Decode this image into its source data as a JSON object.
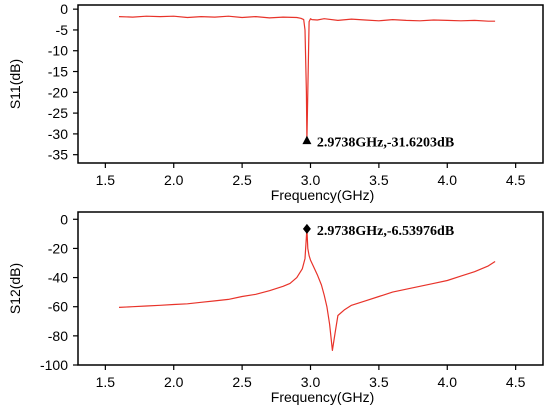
{
  "chart_data": [
    {
      "type": "line",
      "xlabel": "Frequency(GHz)",
      "ylabel": "S11(dB)",
      "xlim": [
        1.3,
        4.7
      ],
      "ylim": [
        -37,
        1
      ],
      "xticks": [
        1.5,
        2.0,
        2.5,
        3.0,
        3.5,
        4.0,
        4.5
      ],
      "yticks": [
        0,
        -5,
        -10,
        -15,
        -20,
        -25,
        -30,
        -35
      ],
      "line_color": "#e8332a",
      "grid": false,
      "series": [
        {
          "x": [
            1.6,
            1.7,
            1.8,
            1.9,
            2.0,
            2.1,
            2.2,
            2.3,
            2.4,
            2.5,
            2.6,
            2.7,
            2.8,
            2.9,
            2.93,
            2.95,
            2.96,
            2.97,
            2.9738,
            2.98,
            2.99,
            3.0,
            3.01,
            3.05,
            3.1,
            3.2,
            3.3,
            3.4,
            3.5,
            3.6,
            3.7,
            3.8,
            3.9,
            4.0,
            4.1,
            4.2,
            4.3,
            4.35
          ],
          "y": [
            -1.8,
            -1.9,
            -1.7,
            -1.8,
            -1.7,
            -2.0,
            -1.8,
            -1.9,
            -1.7,
            -2.0,
            -1.8,
            -2.1,
            -1.9,
            -2.0,
            -2.2,
            -2.5,
            -5.0,
            -20.0,
            -31.6203,
            -20.0,
            -3.0,
            -2.3,
            -2.5,
            -2.6,
            -2.3,
            -2.7,
            -2.4,
            -2.6,
            -2.8,
            -2.5,
            -2.7,
            -2.8,
            -2.6,
            -2.7,
            -2.8,
            -2.7,
            -2.9,
            -2.9
          ]
        }
      ],
      "marker": {
        "x": 2.9738,
        "y": -31.6203,
        "shape": "triangle"
      },
      "annotation": "2.9738GHz,-31.6203dB"
    },
    {
      "type": "line",
      "xlabel": "Frequency(GHz)",
      "ylabel": "S12(dB)",
      "xlim": [
        1.3,
        4.7
      ],
      "ylim": [
        -100,
        5
      ],
      "xticks": [
        1.5,
        2.0,
        2.5,
        3.0,
        3.5,
        4.0,
        4.5
      ],
      "yticks": [
        0,
        -20,
        -40,
        -60,
        -80,
        -100
      ],
      "line_color": "#e8332a",
      "grid": false,
      "series": [
        {
          "x": [
            1.6,
            1.7,
            1.8,
            1.9,
            2.0,
            2.1,
            2.2,
            2.3,
            2.4,
            2.5,
            2.6,
            2.7,
            2.8,
            2.85,
            2.9,
            2.94,
            2.96,
            2.9738,
            2.98,
            2.99,
            3.0,
            3.02,
            3.05,
            3.08,
            3.1,
            3.12,
            3.14,
            3.16,
            3.18,
            3.2,
            3.25,
            3.3,
            3.4,
            3.5,
            3.6,
            3.7,
            3.8,
            3.9,
            4.0,
            4.1,
            4.2,
            4.3,
            4.35
          ],
          "y": [
            -60.5,
            -60,
            -59.5,
            -59,
            -58.5,
            -58,
            -57,
            -56,
            -55,
            -53,
            -51.5,
            -49,
            -46,
            -44,
            -40,
            -34,
            -27,
            -6.54,
            -20,
            -25,
            -28,
            -32,
            -38,
            -45,
            -52,
            -60,
            -72,
            -90,
            -78,
            -66,
            -62,
            -59,
            -56,
            -53,
            -50,
            -48,
            -46,
            -44,
            -42,
            -39,
            -36,
            -32,
            -29
          ]
        }
      ],
      "marker": {
        "x": 2.9738,
        "y": -6.53976,
        "shape": "diamond"
      },
      "annotation": "2.9738GHz,-6.53976dB"
    }
  ]
}
